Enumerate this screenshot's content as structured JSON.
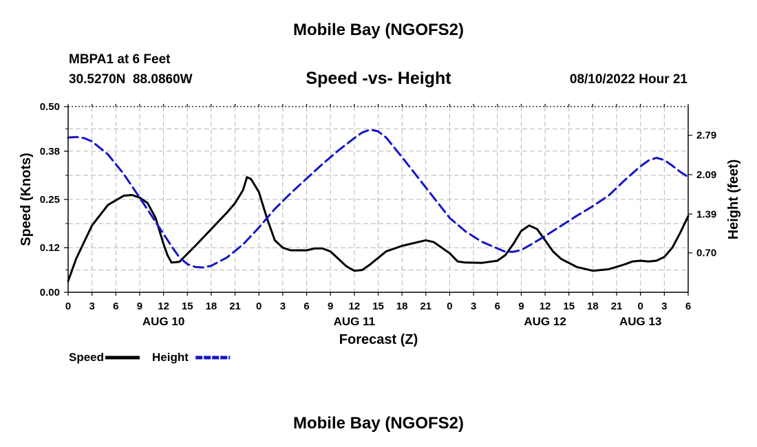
{
  "page": {
    "title": "Mobile Bay (NGOFS2)",
    "station": "MBPA1 at 6 Feet",
    "coords": "30.5270N  88.0860W",
    "chart_title": "Speed -vs- Height",
    "datetime": "08/10/2022 Hour 21",
    "footer_title": "Mobile Bay (NGOFS2)"
  },
  "chart_data": {
    "type": "line",
    "title": "Speed -vs- Height",
    "xlabel": "Forecast (Z)",
    "ylabel": "Speed (Knots)",
    "y2label": "Height (feet)",
    "x_range_hours": [
      0,
      78
    ],
    "x_tick_labels": [
      "0",
      "3",
      "6",
      "9",
      "12",
      "15",
      "18",
      "21",
      "0",
      "3",
      "6",
      "9",
      "12",
      "15",
      "18",
      "21",
      "0",
      "3",
      "6",
      "9",
      "12",
      "15",
      "18",
      "21",
      "0",
      "3",
      "6"
    ],
    "date_labels": [
      {
        "label": "AUG 10",
        "hour": 12
      },
      {
        "label": "AUG 11",
        "hour": 36
      },
      {
        "label": "AUG 12",
        "hour": 60
      },
      {
        "label": "AUG 13",
        "hour": 72
      }
    ],
    "ylim": [
      0,
      0.5
    ],
    "y_ticks": [
      0.0,
      0.12,
      0.25,
      0.38,
      0.5
    ],
    "y_tick_labels": [
      "0.00",
      "0.12",
      "0.25",
      "0.38",
      "0.50"
    ],
    "y2lim": [
      0.0,
      3.3
    ],
    "y2_ticks": [
      0.7,
      1.39,
      2.09,
      2.79
    ],
    "y2_tick_labels": [
      "0.70",
      "1.39",
      "2.09",
      "2.79"
    ],
    "grid": true,
    "legend": [
      {
        "name": "Speed",
        "color": "#000000",
        "style": "solid"
      },
      {
        "name": "Height",
        "color": "#1515c8",
        "style": "dashed"
      }
    ],
    "series": [
      {
        "name": "Speed",
        "axis": "left",
        "color": "#000000",
        "style": "solid",
        "points": [
          [
            0,
            0.03
          ],
          [
            1,
            0.09
          ],
          [
            3,
            0.18
          ],
          [
            5,
            0.235
          ],
          [
            7,
            0.26
          ],
          [
            8,
            0.262
          ],
          [
            9,
            0.255
          ],
          [
            10,
            0.24
          ],
          [
            11,
            0.2
          ],
          [
            12,
            0.13
          ],
          [
            12.5,
            0.1
          ],
          [
            13,
            0.08
          ],
          [
            14,
            0.082
          ],
          [
            16,
            0.125
          ],
          [
            18,
            0.17
          ],
          [
            20,
            0.215
          ],
          [
            21,
            0.24
          ],
          [
            22,
            0.275
          ],
          [
            22.5,
            0.31
          ],
          [
            23,
            0.305
          ],
          [
            24,
            0.27
          ],
          [
            25,
            0.2
          ],
          [
            26,
            0.14
          ],
          [
            27,
            0.12
          ],
          [
            28,
            0.113
          ],
          [
            30,
            0.113
          ],
          [
            31,
            0.118
          ],
          [
            32,
            0.118
          ],
          [
            33,
            0.11
          ],
          [
            35,
            0.07
          ],
          [
            36,
            0.058
          ],
          [
            37,
            0.06
          ],
          [
            38,
            0.075
          ],
          [
            40,
            0.11
          ],
          [
            42,
            0.125
          ],
          [
            44,
            0.135
          ],
          [
            45,
            0.14
          ],
          [
            46,
            0.135
          ],
          [
            48,
            0.105
          ],
          [
            49,
            0.083
          ],
          [
            50,
            0.08
          ],
          [
            52,
            0.079
          ],
          [
            54,
            0.085
          ],
          [
            55,
            0.1
          ],
          [
            56,
            0.13
          ],
          [
            57,
            0.165
          ],
          [
            58,
            0.18
          ],
          [
            59,
            0.17
          ],
          [
            60,
            0.14
          ],
          [
            61,
            0.11
          ],
          [
            62,
            0.09
          ],
          [
            64,
            0.068
          ],
          [
            66,
            0.058
          ],
          [
            68,
            0.062
          ],
          [
            70,
            0.075
          ],
          [
            71,
            0.083
          ],
          [
            72,
            0.085
          ],
          [
            73,
            0.083
          ],
          [
            74,
            0.085
          ],
          [
            75,
            0.095
          ],
          [
            76,
            0.12
          ],
          [
            77,
            0.16
          ],
          [
            78,
            0.205
          ]
        ]
      },
      {
        "name": "Height",
        "axis": "right",
        "color": "#1515c8",
        "style": "dashed",
        "points": [
          [
            0,
            2.75
          ],
          [
            1,
            2.76
          ],
          [
            2,
            2.74
          ],
          [
            3,
            2.68
          ],
          [
            5,
            2.45
          ],
          [
            7,
            2.1
          ],
          [
            9,
            1.68
          ],
          [
            11,
            1.25
          ],
          [
            13,
            0.82
          ],
          [
            14,
            0.62
          ],
          [
            15,
            0.5
          ],
          [
            16,
            0.45
          ],
          [
            17,
            0.44
          ],
          [
            18,
            0.47
          ],
          [
            20,
            0.62
          ],
          [
            22,
            0.85
          ],
          [
            24,
            1.15
          ],
          [
            26,
            1.48
          ],
          [
            28,
            1.76
          ],
          [
            30,
            2.02
          ],
          [
            32,
            2.28
          ],
          [
            34,
            2.52
          ],
          [
            36,
            2.74
          ],
          [
            37,
            2.84
          ],
          [
            38,
            2.89
          ],
          [
            39,
            2.86
          ],
          [
            40,
            2.75
          ],
          [
            42,
            2.4
          ],
          [
            44,
            2.04
          ],
          [
            46,
            1.68
          ],
          [
            48,
            1.32
          ],
          [
            50,
            1.08
          ],
          [
            52,
            0.9
          ],
          [
            54,
            0.78
          ],
          [
            55,
            0.72
          ],
          [
            56,
            0.72
          ],
          [
            57,
            0.75
          ],
          [
            58,
            0.83
          ],
          [
            60,
            1.0
          ],
          [
            62,
            1.18
          ],
          [
            64,
            1.36
          ],
          [
            66,
            1.53
          ],
          [
            68,
            1.72
          ],
          [
            70,
            1.99
          ],
          [
            72,
            2.24
          ],
          [
            73,
            2.34
          ],
          [
            74,
            2.39
          ],
          [
            75,
            2.35
          ],
          [
            76,
            2.25
          ],
          [
            77,
            2.14
          ],
          [
            78,
            2.05
          ]
        ]
      }
    ]
  }
}
